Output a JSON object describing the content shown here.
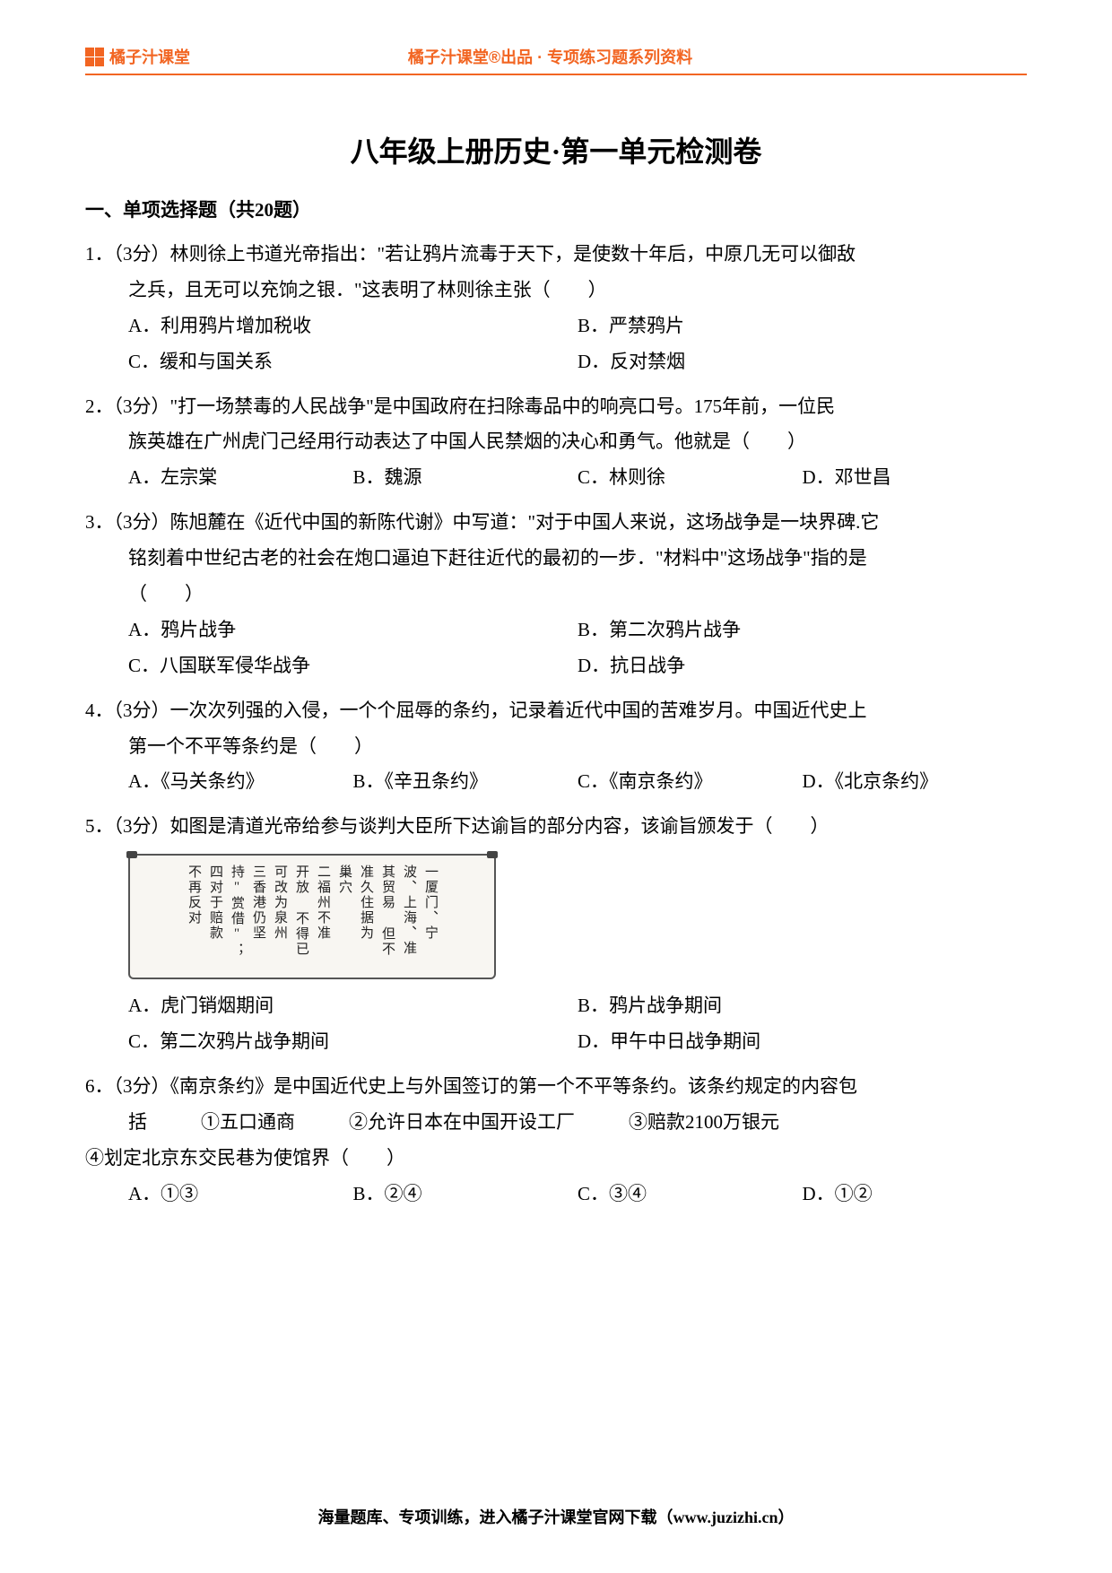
{
  "header": {
    "logo_text": "橘子汁课堂",
    "title": "橘子汁课堂®出品 · 专项练习题系列资料"
  },
  "main_title": "八年级上册历史·第一单元检测卷",
  "section_title": "一、单项选择题（共20题）",
  "q1": {
    "prefix": "1．（3分）林则徐上书道光帝指出：\"若让鸦片流毒于天下，是使数十年后，中原几无可以御敌",
    "line2": "之兵，且无可以充饷之银．\"这表明了林则徐主张（　　）",
    "a": "A．利用鸦片增加税收",
    "b": "B．严禁鸦片",
    "c": "C．缓和与国关系",
    "d": "D．反对禁烟"
  },
  "q2": {
    "prefix": "2．（3分）\"打一场禁毒的人民战争\"是中国政府在扫除毒品中的响亮口号。175年前，一位民",
    "line2": "族英雄在广州虎门己经用行动表达了中国人民禁烟的决心和勇气。他就是（　　）",
    "a": "A．左宗棠",
    "b": "B．魏源",
    "c": "C．林则徐",
    "d": "D．邓世昌"
  },
  "q3": {
    "prefix": "3．（3分）陈旭麓在《近代中国的新陈代谢》中写道：\"对于中国人来说，这场战争是一块界碑.它",
    "line2": "铭刻着中世纪古老的社会在炮口逼迫下赶往近代的最初的一步．\"材料中\"这场战争\"指的是",
    "line3": "（　　）",
    "a": "A．鸦片战争",
    "b": "B．第二次鸦片战争",
    "c": "C．八国联军侵华战争",
    "d": "D．抗日战争"
  },
  "q4": {
    "prefix": "4．（3分）一次次列强的入侵，一个个屈辱的条约，记录着近代中国的苦难岁月。中国近代史上",
    "line2": "第一个不平等条约是（　　）",
    "a": "A．《马关条约》",
    "b": "B．《辛丑条约》",
    "c": "C．《南京条约》",
    "d": "D．《北京条约》"
  },
  "q5": {
    "prefix": "5．（3分）如图是清道光帝给参与谈判大臣所下达谕旨的部分内容，该谕旨颁发于（　　）",
    "scroll_cols": [
      "一厦门、宁",
      "波、上海、准",
      "其贸易 但不",
      "准久住据为",
      "巢穴",
      "二福州不准",
      "开放 不得已",
      "可改为泉州",
      "三香港仍坚",
      "持\"赏借\"；",
      "四对于赔款",
      "不再反对"
    ],
    "a": "A．虎门销烟期间",
    "b": "B．鸦片战争期间",
    "c": "C．第二次鸦片战争期间",
    "d": "D．甲午中日战争期间"
  },
  "q6": {
    "prefix": "6．（3分）《南京条约》是中国近代史上与外国签订的第一个不平等条约。该条约规定的内容包",
    "line2_label": "括",
    "item1": "①五口通商",
    "item2": "②允许日本在中国开设工厂",
    "item3": "③赔款2100万银元",
    "line3": "④划定北京东交民巷为使馆界（　　）",
    "a": "A．①③",
    "b": "B．②④",
    "c": "C．③④",
    "d": "D．①②"
  },
  "footer": "海量题库、专项训练，进入橘子汁课堂官网下载（www.juzizhi.cn）",
  "colors": {
    "brand": "#f26522",
    "text": "#000000"
  }
}
